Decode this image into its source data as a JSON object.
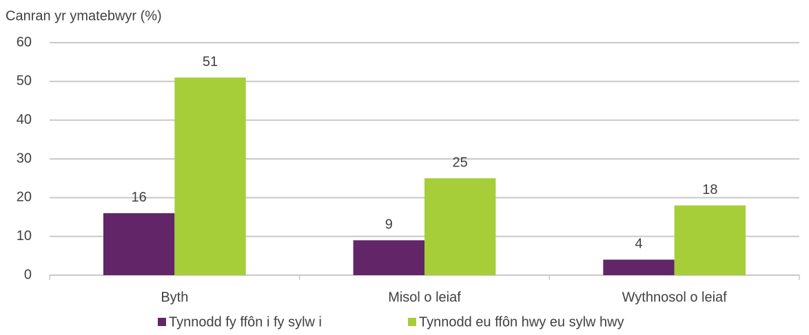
{
  "chart_data": {
    "type": "bar",
    "y_axis_label": "Canran yr ymatebwyr (%)",
    "categories": [
      "Byth",
      "Misol o leiaf",
      "Wythnosol o leiaf"
    ],
    "series": [
      {
        "name": "Tynnodd fy ffôn i fy sylw i",
        "color": "#622567",
        "values": [
          16,
          9,
          4
        ]
      },
      {
        "name": "Tynnodd eu ffôn hwy eu sylw hwy",
        "color": "#a6ce39",
        "values": [
          51,
          25,
          18
        ]
      }
    ],
    "ylim": [
      0,
      60
    ],
    "yticks": [
      0,
      10,
      20,
      30,
      40,
      50,
      60
    ],
    "grid": true,
    "legend": "bottom"
  }
}
